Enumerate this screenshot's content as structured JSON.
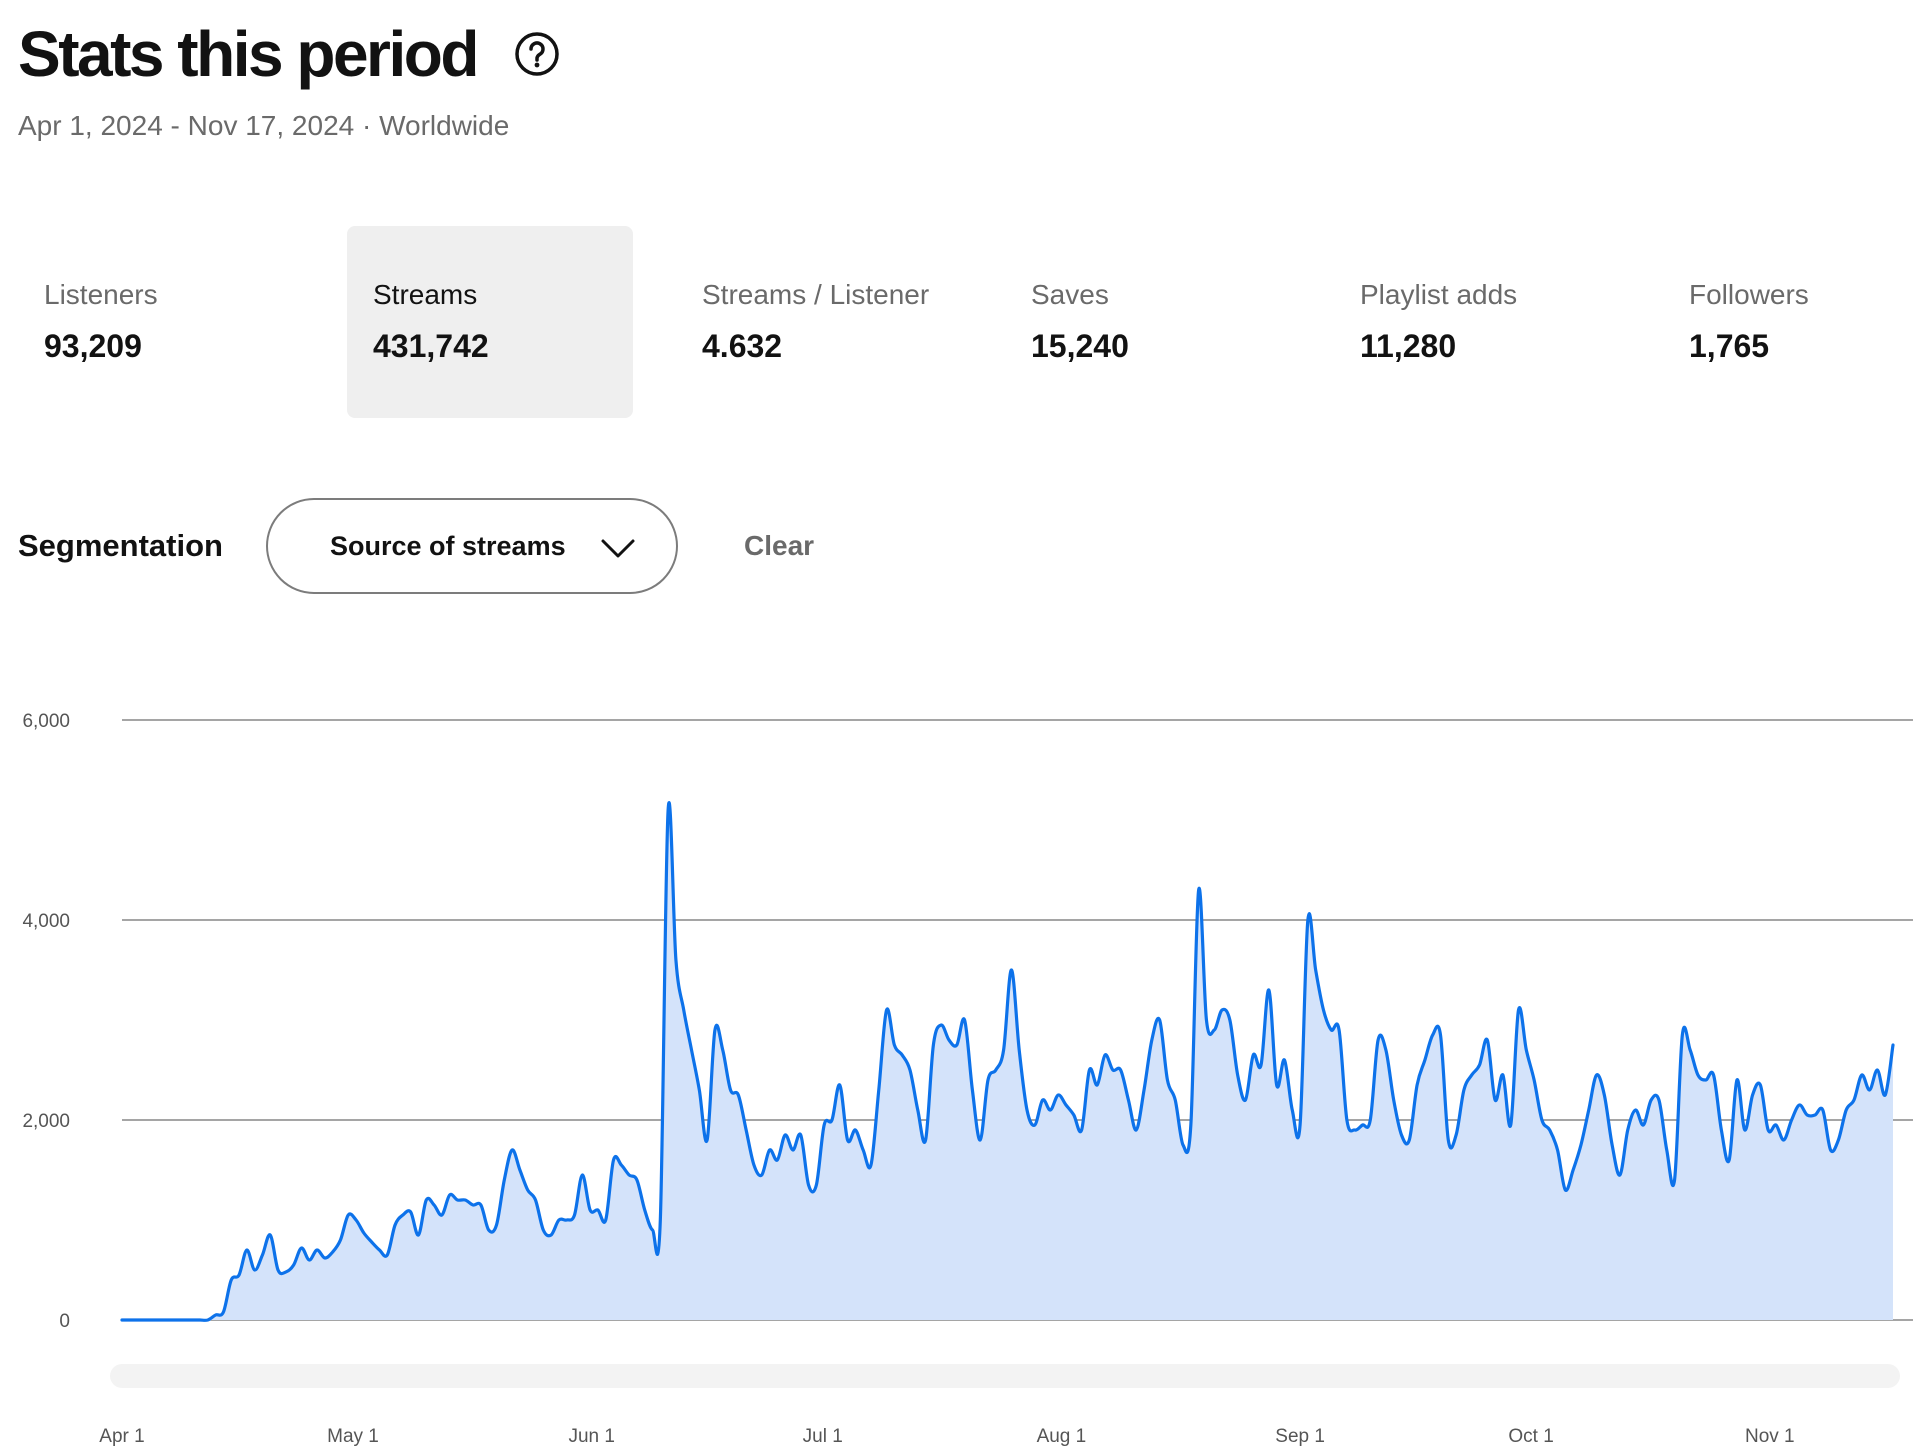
{
  "header": {
    "title": "Stats this period",
    "subtitle": "Apr 1, 2024 - Nov 17, 2024 · Worldwide"
  },
  "metrics": [
    {
      "label": "Listeners",
      "value": "93,209",
      "selected": false
    },
    {
      "label": "Streams",
      "value": "431,742",
      "selected": true
    },
    {
      "label": "Streams / Listener",
      "value": "4.632",
      "selected": false
    },
    {
      "label": "Saves",
      "value": "15,240",
      "selected": false
    },
    {
      "label": "Playlist adds",
      "value": "11,280",
      "selected": false
    },
    {
      "label": "Followers",
      "value": "1,765",
      "selected": false
    }
  ],
  "segmentation": {
    "label": "Segmentation",
    "selected": "Source of streams",
    "clear_label": "Clear"
  },
  "colors": {
    "line": "#0d72ea",
    "fill": "#d4e3fa",
    "grid": "#6f6f6f",
    "selected_bg": "#efefef"
  },
  "chart_data": {
    "type": "area",
    "x_start": "2024-04-01",
    "x_end": "2024-11-17",
    "ylim": [
      0,
      6000
    ],
    "yticks": [
      "0",
      "2,000",
      "4,000",
      "6,000"
    ],
    "yticks_values": [
      0,
      2000,
      4000,
      6000
    ],
    "xtick_labels": [
      "Apr 1",
      "May 1",
      "Jun 1",
      "Jul 1",
      "Aug 1",
      "Sep 1",
      "Oct 1",
      "Nov 1"
    ],
    "xtick_dates": [
      "2024-04-01",
      "2024-05-01",
      "2024-06-01",
      "2024-07-01",
      "2024-08-01",
      "2024-09-01",
      "2024-10-01",
      "2024-11-01"
    ],
    "grid": true,
    "series": [
      {
        "values": [
          0,
          0,
          0,
          0,
          0,
          0,
          0,
          0,
          0,
          0,
          0,
          0,
          50,
          80,
          400,
          450,
          700,
          500,
          650,
          850,
          500,
          480,
          550,
          720,
          600,
          700,
          620,
          680,
          800,
          1050,
          1000,
          870,
          780,
          700,
          650,
          950,
          1050,
          1080,
          850,
          1200,
          1150,
          1050,
          1250,
          1200,
          1200,
          1150,
          1150,
          900,
          950,
          1400,
          1700,
          1500,
          1300,
          1200,
          900,
          850,
          1000,
          1000,
          1050,
          1450,
          1100,
          1100,
          1000,
          1600,
          1550,
          1450,
          1400,
          1100,
          900,
          1000,
          5100,
          3600,
          3100,
          2700,
          2300,
          1800,
          2900,
          2700,
          2300,
          2250,
          1900,
          1550,
          1450,
          1700,
          1600,
          1850,
          1700,
          1850,
          1350,
          1350,
          1950,
          2000,
          2350,
          1800,
          1900,
          1700,
          1550,
          2300,
          3100,
          2750,
          2650,
          2500,
          2100,
          1800,
          2750,
          2950,
          2800,
          2750,
          3000,
          2300,
          1800,
          2400,
          2500,
          2700,
          3500,
          2700,
          2100,
          1950,
          2200,
          2100,
          2250,
          2150,
          2050,
          1900,
          2500,
          2350,
          2650,
          2500,
          2500,
          2200,
          1900,
          2300,
          2800,
          3000,
          2400,
          2200,
          1750,
          1950,
          4300,
          3000,
          2900,
          3100,
          3000,
          2450,
          2200,
          2650,
          2550,
          3300,
          2350,
          2600,
          2100,
          1950,
          4000,
          3500,
          3100,
          2900,
          2900,
          2000,
          1900,
          1950,
          2000,
          2800,
          2700,
          2200,
          1850,
          1800,
          2350,
          2600,
          2850,
          2850,
          1800,
          1850,
          2300,
          2450,
          2550,
          2800,
          2200,
          2450,
          1950,
          3100,
          2700,
          2400,
          2000,
          1900,
          1700,
          1300,
          1500,
          1750,
          2100,
          2450,
          2250,
          1750,
          1450,
          1900,
          2100,
          1950,
          2200,
          2200,
          1700,
          1400,
          2850,
          2700,
          2450,
          2400,
          2450,
          1900,
          1600,
          2400,
          1900,
          2250,
          2350,
          1900,
          1950,
          1800,
          2000,
          2150,
          2050,
          2050,
          2100,
          1700,
          1800,
          2100,
          2200,
          2450,
          2300,
          2500,
          2250,
          2750
        ]
      }
    ]
  }
}
